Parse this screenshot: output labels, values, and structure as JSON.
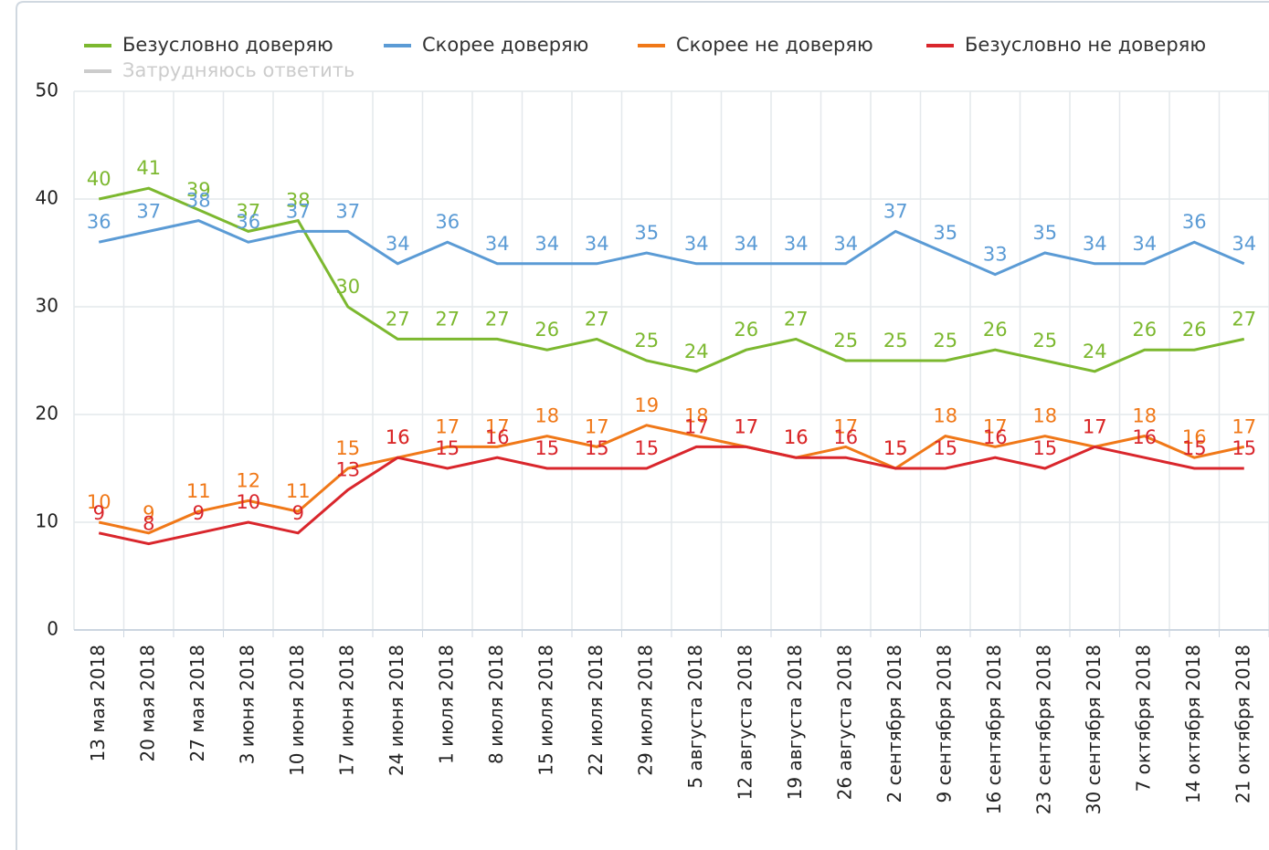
{
  "chart_data": {
    "type": "line",
    "categories": [
      "13 мая 2018",
      "20 мая 2018",
      "27 мая 2018",
      "3 июня 2018",
      "10 июня 2018",
      "17 июня 2018",
      "24 июня 2018",
      "1 июля 2018",
      "8 июля 2018",
      "15 июля 2018",
      "22 июля 2018",
      "29 июля 2018",
      "5 августа 2018",
      "12 августа 2018",
      "19 августа 2018",
      "26 августа 2018",
      "2 сентября 2018",
      "9 сентября 2018",
      "16 сентября 2018",
      "23 сентября 2018",
      "30 сентября 2018",
      "7 октября 2018",
      "14 октября 2018",
      "21 октября 2018"
    ],
    "series": [
      {
        "name": "Безусловно доверяю",
        "color": "#7cb82f",
        "values": [
          40,
          41,
          39,
          37,
          38,
          30,
          27,
          27,
          27,
          26,
          27,
          25,
          24,
          26,
          27,
          25,
          25,
          25,
          26,
          25,
          24,
          26,
          26,
          27
        ]
      },
      {
        "name": "Скорее доверяю",
        "color": "#5b9bd5",
        "values": [
          36,
          37,
          38,
          36,
          37,
          37,
          34,
          36,
          34,
          34,
          34,
          35,
          34,
          34,
          34,
          34,
          37,
          35,
          33,
          35,
          34,
          34,
          36,
          34
        ]
      },
      {
        "name": "Скорее не доверяю",
        "color": "#f07818",
        "values": [
          10,
          9,
          11,
          12,
          11,
          15,
          16,
          17,
          17,
          18,
          17,
          19,
          18,
          17,
          16,
          17,
          15,
          18,
          17,
          18,
          17,
          18,
          16,
          17
        ]
      },
      {
        "name": "Безусловно не доверяю",
        "color": "#d9262c",
        "values": [
          9,
          8,
          9,
          10,
          9,
          13,
          16,
          15,
          16,
          15,
          15,
          15,
          17,
          17,
          16,
          16,
          15,
          15,
          16,
          15,
          17,
          16,
          15,
          15
        ]
      }
    ],
    "inactive_legend": [
      {
        "name": "Затрудняюсь ответить",
        "color": "#cccccc"
      }
    ],
    "ylim": [
      0,
      50
    ],
    "yticks": [
      0,
      10,
      20,
      30,
      40,
      50
    ],
    "grid": true
  }
}
